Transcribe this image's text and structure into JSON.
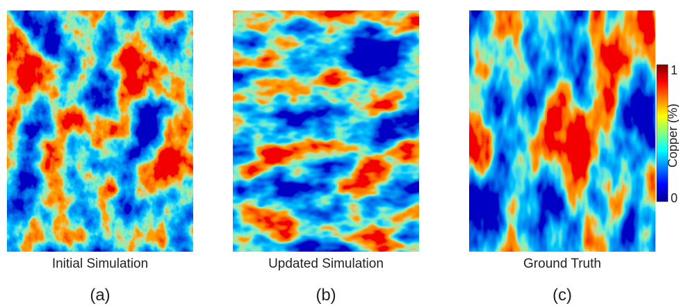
{
  "panels": [
    {
      "caption": "Initial Simulation",
      "label": "(a)"
    },
    {
      "caption": "Updated Simulation",
      "label": "(b)"
    },
    {
      "caption": "Ground Truth",
      "label": "(c)"
    }
  ],
  "colorbar": {
    "title": "Copper (%)",
    "top": "1",
    "bottom": "0"
  }
}
